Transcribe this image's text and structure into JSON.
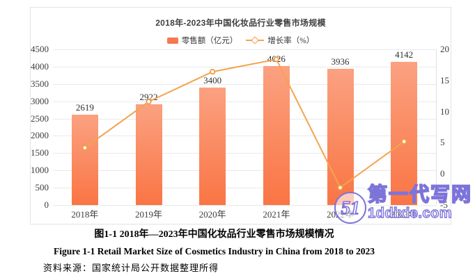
{
  "chart_data": {
    "type": "bar",
    "combo": "bar+line",
    "title": "2018年-2023年中国化妆品行业零售市场规模",
    "categories": [
      "2018年",
      "2019年",
      "2020年",
      "2021年",
      "2022年",
      "2023年"
    ],
    "series": [
      {
        "name": "零售额（亿元）",
        "type": "bar",
        "axis": "left",
        "values": [
          2619,
          2922,
          3400,
          4026,
          3936,
          4142
        ],
        "data_labels": true
      },
      {
        "name": "增长率（%）",
        "type": "line",
        "axis": "right",
        "values": [
          4.2,
          11.6,
          16.4,
          18.4,
          -2.2,
          5.2
        ],
        "data_labels": false
      }
    ],
    "left_axis": {
      "min": 0,
      "max": 4500,
      "step": 500,
      "ticks": [
        4500,
        4000,
        3500,
        3000,
        2500,
        2000,
        1500,
        1000,
        500,
        0
      ]
    },
    "right_axis": {
      "min": -5,
      "max": 20,
      "step": 5,
      "ticks": [
        20,
        15,
        10,
        5,
        0,
        -5
      ]
    },
    "grid": true,
    "legend_position": "top"
  },
  "colors": {
    "bar_top": "#fba181",
    "bar_bottom": "#fa7544",
    "line": "#f2a44d",
    "marker_ring": "#f09c43",
    "grid": "#e9e9e9",
    "accent_purple": "#7d74da"
  },
  "captions": {
    "zh": "图1-1 2018年—2023年中国化妆品行业零售市场规模情况",
    "en": "Figure 1-1 Retail Market Size of Cosmetics Industry in China from 2018 to 2023",
    "source": "资料来源：国家统计局公开数据整理所得"
  },
  "watermark": {
    "logo_text": "51",
    "line1": "第一代写网",
    "line2": "1ddixie.com"
  }
}
